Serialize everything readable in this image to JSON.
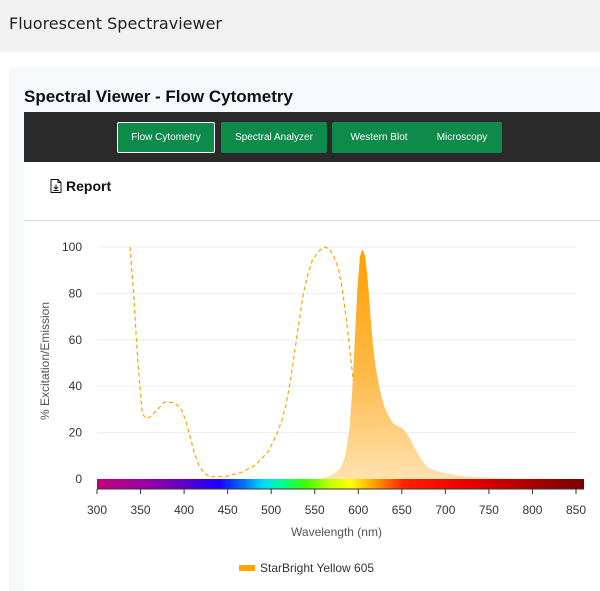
{
  "app": {
    "title": "Fluorescent Spectraviewer"
  },
  "panel": {
    "title": "Spectral Viewer - Flow Cytometry"
  },
  "nav": {
    "buttons": [
      {
        "label": "Flow Cytometry",
        "active": true
      },
      {
        "label": "Spectral Analyzer",
        "active": false
      },
      {
        "label": "Western Blot",
        "active": false
      },
      {
        "label": "Microscopy",
        "active": false
      }
    ]
  },
  "toolbar": {
    "report_label": "Report",
    "report_icon": "document-icon"
  },
  "colors": {
    "nav_bg": "#2a2a2a",
    "button_green": "#0e8a4a",
    "series": "#ffa500"
  },
  "chart_data": {
    "type": "area",
    "xlabel": "Wavelength (nm)",
    "ylabel": "% Excitation/Emission",
    "xlim": [
      300,
      850
    ],
    "ylim": [
      0,
      100
    ],
    "xticks": [
      300,
      350,
      400,
      450,
      500,
      550,
      600,
      650,
      700,
      750,
      800,
      850
    ],
    "yticks": [
      0,
      20,
      40,
      60,
      80,
      100
    ],
    "grid": true,
    "legend_position": "bottom-center",
    "spectrum_bar": true,
    "series": [
      {
        "name": "StarBright Yellow 605",
        "kind": "excitation",
        "style": "dashed",
        "color": "#ffa500",
        "x": [
          338,
          342,
          347,
          352,
          357,
          362,
          367,
          372,
          377,
          382,
          387,
          392,
          397,
          402,
          407,
          412,
          417,
          422,
          427,
          432,
          437,
          442,
          447,
          452,
          457,
          462,
          467,
          472,
          477,
          482,
          487,
          492,
          497,
          502,
          507,
          512,
          517,
          522,
          527,
          532,
          537,
          542,
          547,
          552,
          557,
          562,
          567,
          572,
          577,
          580,
          583,
          586,
          589,
          592,
          595,
          598,
          601,
          604,
          607,
          610,
          613,
          616,
          619,
          622,
          625,
          628,
          632
        ],
        "y": [
          100,
          80,
          50,
          28,
          26,
          27,
          29,
          31,
          33,
          33,
          33,
          32,
          30,
          25,
          18,
          11,
          6,
          3,
          1.5,
          1,
          1,
          1,
          1,
          1.5,
          2,
          2.5,
          3,
          4,
          5,
          6,
          8,
          10,
          12,
          16,
          20,
          25,
          32,
          42,
          55,
          68,
          80,
          88,
          94,
          97,
          99,
          100,
          99,
          96,
          91,
          85,
          78,
          70,
          60,
          50,
          40,
          30,
          20,
          13,
          8,
          5,
          3,
          2,
          1,
          0.6,
          0.3,
          0.1,
          0
        ]
      },
      {
        "name": "StarBright Yellow 605",
        "kind": "emission",
        "style": "filled",
        "color": "#ffa500",
        "x": [
          555,
          560,
          565,
          570,
          575,
          580,
          585,
          590,
          593,
          596,
          599,
          602,
          605,
          608,
          611,
          614,
          617,
          620,
          625,
          630,
          635,
          640,
          645,
          650,
          655,
          660,
          665,
          670,
          675,
          680,
          690,
          700,
          710,
          720,
          730,
          740,
          750,
          760,
          780,
          800,
          820,
          850
        ],
        "y": [
          0,
          0.5,
          1,
          2,
          3,
          5,
          10,
          22,
          38,
          60,
          82,
          96,
          99,
          96,
          85,
          70,
          57,
          48,
          38,
          31,
          27,
          24,
          23,
          22,
          20,
          17,
          13,
          10,
          7,
          5,
          3.5,
          2.5,
          1.8,
          1.3,
          1,
          0.8,
          0.6,
          0.4,
          0.2,
          0.1,
          0.05,
          0
        ]
      }
    ]
  }
}
